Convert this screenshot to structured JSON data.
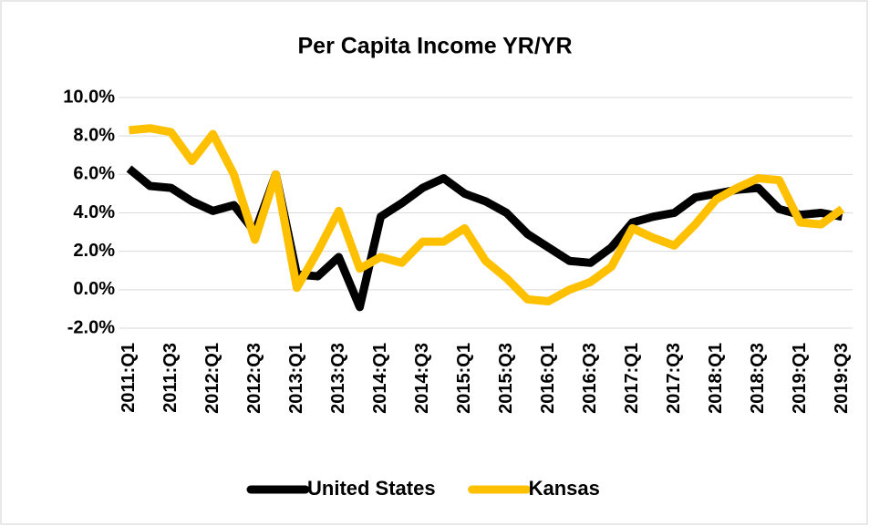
{
  "chart_data": {
    "type": "line",
    "title": "Per Capita Income YR/YR",
    "categories": [
      "2011:Q1",
      null,
      "2011:Q3",
      null,
      "2012:Q1",
      null,
      "2012:Q3",
      null,
      "2013:Q1",
      null,
      "2013:Q3",
      null,
      "2014:Q1",
      null,
      "2014:Q3",
      null,
      "2015:Q1",
      null,
      "2015:Q3",
      null,
      "2016:Q1",
      null,
      "2016:Q3",
      null,
      "2017:Q1",
      null,
      "2017:Q3",
      null,
      "2018:Q1",
      null,
      "2018:Q3",
      null,
      "2019:Q1",
      null,
      "2019:Q3"
    ],
    "series": [
      {
        "name": "United States",
        "color": "#000000",
        "values": [
          6.3,
          5.4,
          5.3,
          4.6,
          4.1,
          4.4,
          3.0,
          6.0,
          0.8,
          0.7,
          1.7,
          -0.9,
          3.8,
          4.5,
          5.3,
          5.8,
          5.0,
          4.6,
          4.0,
          2.9,
          2.2,
          1.5,
          1.4,
          2.2,
          3.5,
          3.8,
          4.0,
          4.8,
          5.0,
          5.2,
          5.3,
          4.2,
          3.9,
          4.0,
          3.8
        ]
      },
      {
        "name": "Kansas",
        "color": "#ffc000",
        "values": [
          8.3,
          8.4,
          8.2,
          6.7,
          8.1,
          6.0,
          2.6,
          6.0,
          0.1,
          2.0,
          4.1,
          1.1,
          1.7,
          1.4,
          2.5,
          2.5,
          3.2,
          1.5,
          0.6,
          -0.5,
          -0.6,
          0.0,
          0.4,
          1.2,
          3.2,
          2.7,
          2.3,
          3.4,
          4.7,
          5.3,
          5.8,
          5.7,
          3.5,
          3.4,
          4.2
        ]
      }
    ],
    "ylim": [
      -2,
      10
    ],
    "yticks": [
      {
        "value": -2,
        "label": "-2.0%"
      },
      {
        "value": 0,
        "label": "0.0%"
      },
      {
        "value": 2,
        "label": "2.0%"
      },
      {
        "value": 4,
        "label": "4.0%"
      },
      {
        "value": 6,
        "label": "6.0%"
      },
      {
        "value": 8,
        "label": "8.0%"
      },
      {
        "value": 10,
        "label": "10.0%"
      }
    ],
    "grid": true,
    "legend": "bottom"
  }
}
